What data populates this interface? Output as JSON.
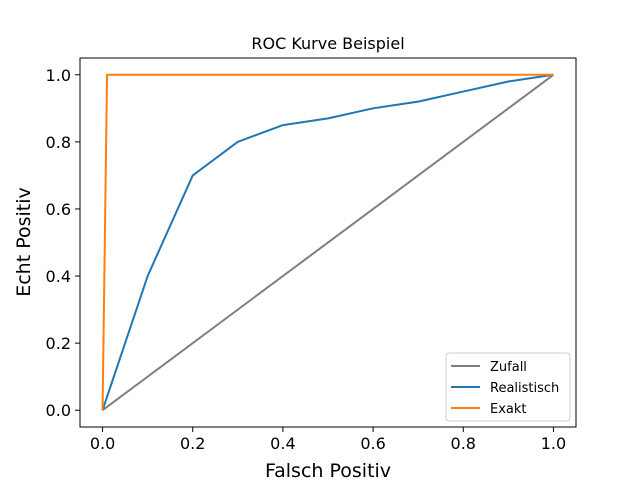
{
  "chart_data": {
    "type": "line",
    "title": "ROC Kurve Beispiel",
    "xlabel": "Falsch Positiv",
    "ylabel": "Echt Positiv",
    "xlim": [
      -0.05,
      1.05
    ],
    "ylim": [
      -0.05,
      1.05
    ],
    "xticks": [
      0.0,
      0.2,
      0.4,
      0.6,
      0.8,
      1.0
    ],
    "xtick_labels": [
      "0.0",
      "0.2",
      "0.4",
      "0.6",
      "0.8",
      "1.0"
    ],
    "yticks": [
      0.0,
      0.2,
      0.4,
      0.6,
      0.8,
      1.0
    ],
    "ytick_labels": [
      "0.0",
      "0.2",
      "0.4",
      "0.6",
      "0.8",
      "1.0"
    ],
    "grid": false,
    "legend_position": "lower-right",
    "series": [
      {
        "name": "Zufall",
        "color": "#7f7f7f",
        "x": [
          0.0,
          1.0
        ],
        "y": [
          0.0,
          1.0
        ]
      },
      {
        "name": "Realistisch",
        "color": "#1f77b4",
        "x": [
          0.0,
          0.1,
          0.2,
          0.3,
          0.4,
          0.5,
          0.6,
          0.7,
          0.8,
          0.9,
          1.0
        ],
        "y": [
          0.0,
          0.4,
          0.7,
          0.8,
          0.85,
          0.87,
          0.9,
          0.92,
          0.95,
          0.98,
          1.0
        ]
      },
      {
        "name": "Exakt",
        "color": "#ff7f0e",
        "x": [
          0.0,
          0.01,
          1.0
        ],
        "y": [
          0.0,
          1.0,
          1.0
        ]
      }
    ]
  }
}
